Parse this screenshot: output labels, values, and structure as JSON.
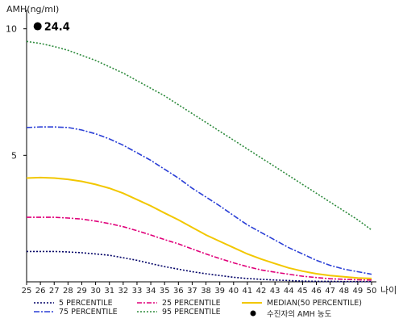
{
  "chart_data": {
    "type": "line",
    "ylabel": "AMH(ng/ml)",
    "xlabel": "나이",
    "x": [
      25,
      26,
      27,
      28,
      29,
      30,
      31,
      32,
      33,
      34,
      35,
      36,
      37,
      38,
      39,
      40,
      41,
      42,
      43,
      44,
      45,
      46,
      47,
      48,
      49,
      50
    ],
    "y_ticks": [
      5,
      10
    ],
    "ylim": [
      0,
      10.5
    ],
    "series": [
      {
        "name": "5 PERCENTILE",
        "color": "#000066",
        "dash": "2,2",
        "values": [
          1.2,
          1.2,
          1.2,
          1.18,
          1.15,
          1.1,
          1.05,
          0.95,
          0.85,
          0.72,
          0.6,
          0.5,
          0.4,
          0.32,
          0.25,
          0.18,
          0.13,
          0.1,
          0.07,
          0.05,
          0.03,
          0.02,
          0.02,
          0.01,
          0.01,
          0.01
        ]
      },
      {
        "name": "25 PERCENTILE",
        "color": "#e0007a",
        "dash": "6,2,2,2",
        "values": [
          2.55,
          2.55,
          2.55,
          2.52,
          2.48,
          2.4,
          2.3,
          2.18,
          2.02,
          1.85,
          1.67,
          1.5,
          1.3,
          1.1,
          0.92,
          0.75,
          0.6,
          0.47,
          0.38,
          0.3,
          0.22,
          0.17,
          0.12,
          0.1,
          0.08,
          0.07
        ]
      },
      {
        "name": "MEDIAN(50 PERCENTILE)",
        "color": "#f2c700",
        "dash": "",
        "values": [
          4.1,
          4.12,
          4.1,
          4.05,
          3.97,
          3.85,
          3.7,
          3.5,
          3.25,
          3.0,
          2.72,
          2.45,
          2.15,
          1.85,
          1.6,
          1.35,
          1.1,
          0.9,
          0.72,
          0.55,
          0.42,
          0.32,
          0.25,
          0.2,
          0.15,
          0.13
        ]
      },
      {
        "name": "75 PERCENTILE",
        "color": "#2a3fd6",
        "dash": "7,2,2,2",
        "values": [
          6.1,
          6.12,
          6.12,
          6.1,
          6.0,
          5.85,
          5.65,
          5.4,
          5.1,
          4.8,
          4.45,
          4.1,
          3.7,
          3.35,
          3.0,
          2.62,
          2.25,
          1.95,
          1.65,
          1.35,
          1.1,
          0.85,
          0.65,
          0.5,
          0.4,
          0.3
        ]
      },
      {
        "name": "95 PERCENTILE",
        "color": "#2e8b3d",
        "dash": "2,2",
        "values": [
          9.5,
          9.42,
          9.3,
          9.15,
          8.95,
          8.75,
          8.5,
          8.25,
          7.95,
          7.65,
          7.35,
          7.0,
          6.65,
          6.3,
          5.95,
          5.6,
          5.25,
          4.9,
          4.55,
          4.2,
          3.85,
          3.5,
          3.15,
          2.8,
          2.45,
          2.05
        ]
      }
    ],
    "marker": {
      "label": "24.4",
      "legend": "수진자의 AMH 농도",
      "x": 25.8,
      "y": 10.1,
      "color": "#000000"
    },
    "legend_position": "bottom"
  }
}
